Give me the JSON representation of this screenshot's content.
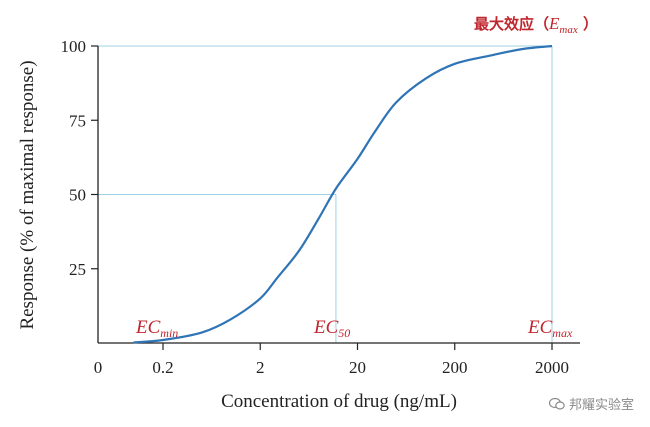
{
  "chart_data": {
    "type": "line",
    "xlabel": "Concentration of drug (ng/mL)",
    "ylabel": "Response (% of maximal response)",
    "x_scale": "log",
    "x_ticks": [
      "0",
      "0.2",
      "2",
      "20",
      "200",
      "2000"
    ],
    "y_ticks": [
      "25",
      "50",
      "75",
      "100"
    ],
    "ylim": [
      0,
      100
    ],
    "grid": false,
    "series": [
      {
        "color": "#2f74b5",
        "x": [
          0.1,
          0.2,
          0.5,
          1,
          2,
          3,
          5,
          8,
          12,
          20,
          30,
          50,
          100,
          200,
          500,
          1000,
          2000
        ],
        "y": [
          0.2,
          1,
          3.5,
          8,
          15,
          22,
          31,
          42,
          52,
          62,
          71,
          81,
          89,
          94,
          97,
          99,
          100
        ]
      }
    ],
    "annotations": {
      "ec_min": "EC_min",
      "ec50": "EC_50",
      "ecmax": "EC_max",
      "emax_title": "最大效应（E_max ）",
      "ec50_x": 12,
      "ec50_y": 50,
      "ecmax_x": 2000,
      "ecmax_y": 100
    },
    "colors": {
      "curve": "#2f74b5",
      "guide": "#9fd1e6",
      "label": "#c0262d"
    }
  },
  "watermark": {
    "text": "邦耀实验室"
  }
}
